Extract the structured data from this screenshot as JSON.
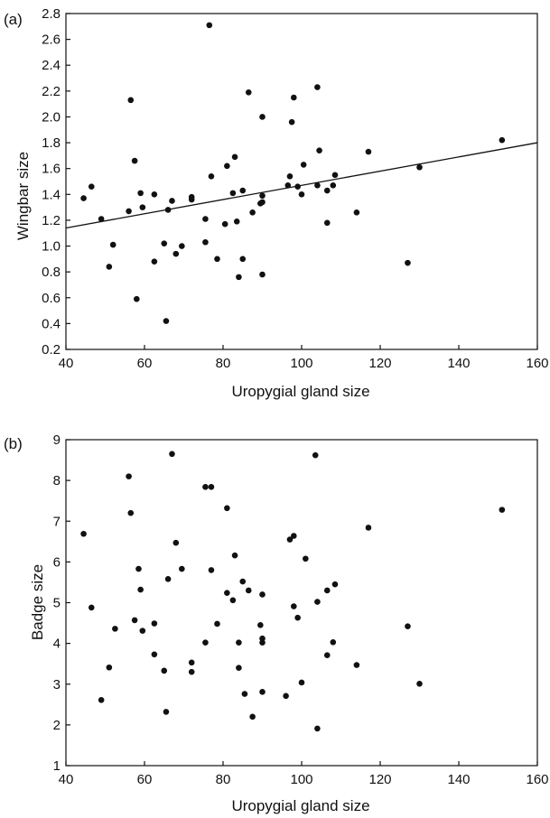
{
  "chart_data": [
    {
      "type": "scatter",
      "panel_label": "(a)",
      "xlabel": "Uropygial gland size",
      "ylabel": "Wingbar size",
      "xlim": [
        40,
        160
      ],
      "ylim": [
        0.2,
        2.8
      ],
      "xticks": [
        40,
        60,
        80,
        100,
        120,
        140,
        160
      ],
      "yticks": [
        0.2,
        0.4,
        0.6,
        0.8,
        1.0,
        1.2,
        1.4,
        1.6,
        1.8,
        2.0,
        2.2,
        2.4,
        2.6,
        2.8
      ],
      "ytick_labels": [
        "0.2",
        "0.4",
        "0.6",
        "0.8",
        "1.0",
        "1.2",
        "1.4",
        "1.6",
        "1.8",
        "2.0",
        "2.2",
        "2.4",
        "2.6",
        "2.8"
      ],
      "grid": false,
      "trendline": {
        "x": [
          40,
          160
        ],
        "y": [
          1.14,
          1.8
        ]
      },
      "points": [
        [
          44.5,
          1.37
        ],
        [
          46.5,
          1.46
        ],
        [
          49,
          1.21
        ],
        [
          51,
          0.84
        ],
        [
          52,
          1.01
        ],
        [
          56,
          1.27
        ],
        [
          56.5,
          2.13
        ],
        [
          57.5,
          1.66
        ],
        [
          58,
          0.59
        ],
        [
          59,
          1.41
        ],
        [
          59.5,
          1.3
        ],
        [
          62.5,
          0.88
        ],
        [
          62.5,
          1.4
        ],
        [
          65,
          1.02
        ],
        [
          65.5,
          0.42
        ],
        [
          66,
          1.28
        ],
        [
          67,
          1.35
        ],
        [
          68,
          0.94
        ],
        [
          69.5,
          1.0
        ],
        [
          72,
          1.36
        ],
        [
          72,
          1.38
        ],
        [
          75.5,
          1.21
        ],
        [
          75.5,
          1.03
        ],
        [
          76.5,
          2.71
        ],
        [
          77,
          1.54
        ],
        [
          78.5,
          0.9
        ],
        [
          80.5,
          1.17
        ],
        [
          81,
          1.62
        ],
        [
          82.5,
          1.41
        ],
        [
          83,
          1.69
        ],
        [
          83.5,
          1.19
        ],
        [
          84,
          0.76
        ],
        [
          85,
          0.9
        ],
        [
          85,
          1.43
        ],
        [
          86.5,
          2.19
        ],
        [
          87.5,
          1.26
        ],
        [
          89.5,
          1.33
        ],
        [
          90,
          1.39
        ],
        [
          90,
          1.34
        ],
        [
          90,
          0.78
        ],
        [
          90,
          2.0
        ],
        [
          96.5,
          1.47
        ],
        [
          97,
          1.54
        ],
        [
          97.5,
          1.96
        ],
        [
          98,
          2.15
        ],
        [
          99,
          1.46
        ],
        [
          100,
          1.4
        ],
        [
          100.5,
          1.63
        ],
        [
          104,
          2.23
        ],
        [
          104,
          1.47
        ],
        [
          104.5,
          1.74
        ],
        [
          106.5,
          1.18
        ],
        [
          106.5,
          1.43
        ],
        [
          108,
          1.47
        ],
        [
          108.5,
          1.55
        ],
        [
          114,
          1.26
        ],
        [
          117,
          1.73
        ],
        [
          127,
          0.87
        ],
        [
          130,
          1.61
        ],
        [
          151,
          1.82
        ]
      ]
    },
    {
      "type": "scatter",
      "panel_label": "(b)",
      "xlabel": "Uropygial gland size",
      "ylabel": "Badge size",
      "xlim": [
        40,
        160
      ],
      "ylim": [
        1,
        9
      ],
      "xticks": [
        40,
        60,
        80,
        100,
        120,
        140,
        160
      ],
      "yticks": [
        1,
        2,
        3,
        4,
        5,
        6,
        7,
        8,
        9
      ],
      "ytick_labels": [
        "1",
        "2",
        "3",
        "4",
        "5",
        "6",
        "7",
        "8",
        "9"
      ],
      "grid": false,
      "points": [
        [
          44.5,
          6.69
        ],
        [
          46.5,
          4.88
        ],
        [
          49,
          2.61
        ],
        [
          51,
          3.41
        ],
        [
          52.5,
          4.36
        ],
        [
          56,
          8.1
        ],
        [
          56.5,
          7.2
        ],
        [
          57.5,
          4.57
        ],
        [
          58.5,
          5.83
        ],
        [
          59,
          5.32
        ],
        [
          59.5,
          4.31
        ],
        [
          62.5,
          4.49
        ],
        [
          62.5,
          3.73
        ],
        [
          65,
          3.33
        ],
        [
          65.5,
          2.32
        ],
        [
          66,
          5.58
        ],
        [
          67,
          8.65
        ],
        [
          68,
          6.47
        ],
        [
          69.5,
          5.83
        ],
        [
          72,
          3.3
        ],
        [
          72,
          3.53
        ],
        [
          75.5,
          4.02
        ],
        [
          75.5,
          7.84
        ],
        [
          77,
          7.84
        ],
        [
          77,
          5.8
        ],
        [
          78.5,
          4.48
        ],
        [
          81,
          5.24
        ],
        [
          81,
          7.32
        ],
        [
          82.5,
          5.06
        ],
        [
          83,
          6.16
        ],
        [
          84,
          3.4
        ],
        [
          84,
          4.02
        ],
        [
          85,
          5.52
        ],
        [
          85.5,
          2.76
        ],
        [
          86.5,
          5.3
        ],
        [
          87.5,
          2.2
        ],
        [
          89.5,
          4.45
        ],
        [
          90,
          4.12
        ],
        [
          90,
          4.02
        ],
        [
          90,
          2.81
        ],
        [
          90,
          5.2
        ],
        [
          96,
          2.71
        ],
        [
          97,
          6.55
        ],
        [
          98,
          6.64
        ],
        [
          98,
          4.91
        ],
        [
          99,
          4.63
        ],
        [
          100,
          3.04
        ],
        [
          101,
          6.08
        ],
        [
          103.5,
          8.62
        ],
        [
          104,
          1.91
        ],
        [
          104,
          5.02
        ],
        [
          106.5,
          5.3
        ],
        [
          106.5,
          3.71
        ],
        [
          108,
          4.03
        ],
        [
          108.5,
          5.45
        ],
        [
          114,
          3.47
        ],
        [
          117,
          6.84
        ],
        [
          127,
          4.42
        ],
        [
          130,
          3.01
        ],
        [
          151,
          7.28
        ]
      ]
    }
  ]
}
